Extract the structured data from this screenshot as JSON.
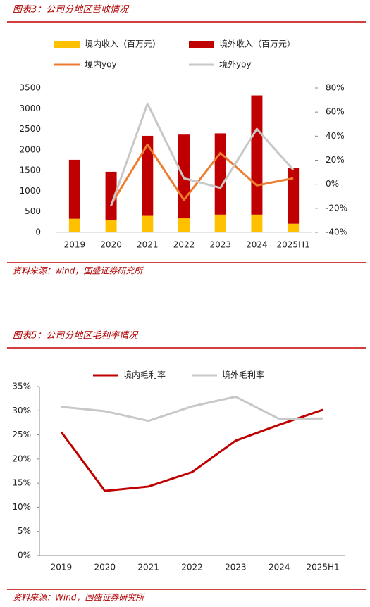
{
  "chart_data": [
    {
      "type": "bar",
      "stacked": true,
      "title": "图表3：公司分地区营收情况",
      "source": "资料来源：wind，国盛证券研究所",
      "categories": [
        "2019",
        "2020",
        "2021",
        "2022",
        "2023",
        "2024",
        "2025H1"
      ],
      "series": [
        {
          "name": "境内收入（百万元）",
          "type": "bar",
          "color": "#ffc000",
          "values": [
            330,
            290,
            400,
            340,
            430,
            430,
            210
          ]
        },
        {
          "name": "境外收入（百万元）",
          "type": "bar",
          "color": "#c00000",
          "values": [
            1430,
            1180,
            1940,
            2030,
            1970,
            2890,
            1360
          ]
        },
        {
          "name": "境内yoy",
          "type": "line",
          "axis": "y2",
          "color": "#ed7d31",
          "values": [
            null,
            -17,
            33,
            -13,
            26,
            -1,
            5
          ]
        },
        {
          "name": "境外yoy",
          "type": "line",
          "axis": "y2",
          "color": "#c8c8c8",
          "values": [
            null,
            -18,
            67,
            5,
            -3,
            46,
            12
          ]
        }
      ],
      "ylim": [
        0,
        3500
      ],
      "yticks": [
        0,
        500,
        1000,
        1500,
        2000,
        2500,
        3000,
        3500
      ],
      "y2lim": [
        -40,
        80
      ],
      "y2ticks": [
        {
          "value": -40,
          "label": "-40%"
        },
        {
          "value": -20,
          "label": "-20%"
        },
        {
          "value": 0,
          "label": "0%"
        },
        {
          "value": 20,
          "label": "20%"
        },
        {
          "value": 40,
          "label": "40%"
        },
        {
          "value": 60,
          "label": "60%"
        },
        {
          "value": 80,
          "label": "80%"
        }
      ],
      "grid": false
    },
    {
      "type": "line",
      "title": "图表5：公司分地区毛利率情况",
      "source": "资料来源：Wind，国盛证券研究所",
      "categories": [
        "2019",
        "2020",
        "2021",
        "2022",
        "2023",
        "2024",
        "2025H1"
      ],
      "series": [
        {
          "name": "境内毛利率",
          "color": "#c00000",
          "values": [
            25.6,
            13.4,
            14.3,
            17.3,
            23.8,
            27.1,
            30.2
          ]
        },
        {
          "name": "境外毛利率",
          "color": "#c8c8c8",
          "values": [
            30.8,
            29.9,
            27.9,
            30.9,
            32.9,
            28.3,
            28.4
          ]
        }
      ],
      "ylim": [
        0,
        35
      ],
      "yticks": [
        {
          "value": 0,
          "label": "0%"
        },
        {
          "value": 5,
          "label": "5%"
        },
        {
          "value": 10,
          "label": "10%"
        },
        {
          "value": 15,
          "label": "15%"
        },
        {
          "value": 20,
          "label": "20%"
        },
        {
          "value": 25,
          "label": "25%"
        },
        {
          "value": 30,
          "label": "30%"
        },
        {
          "value": 35,
          "label": "35%"
        }
      ],
      "grid": false
    }
  ]
}
